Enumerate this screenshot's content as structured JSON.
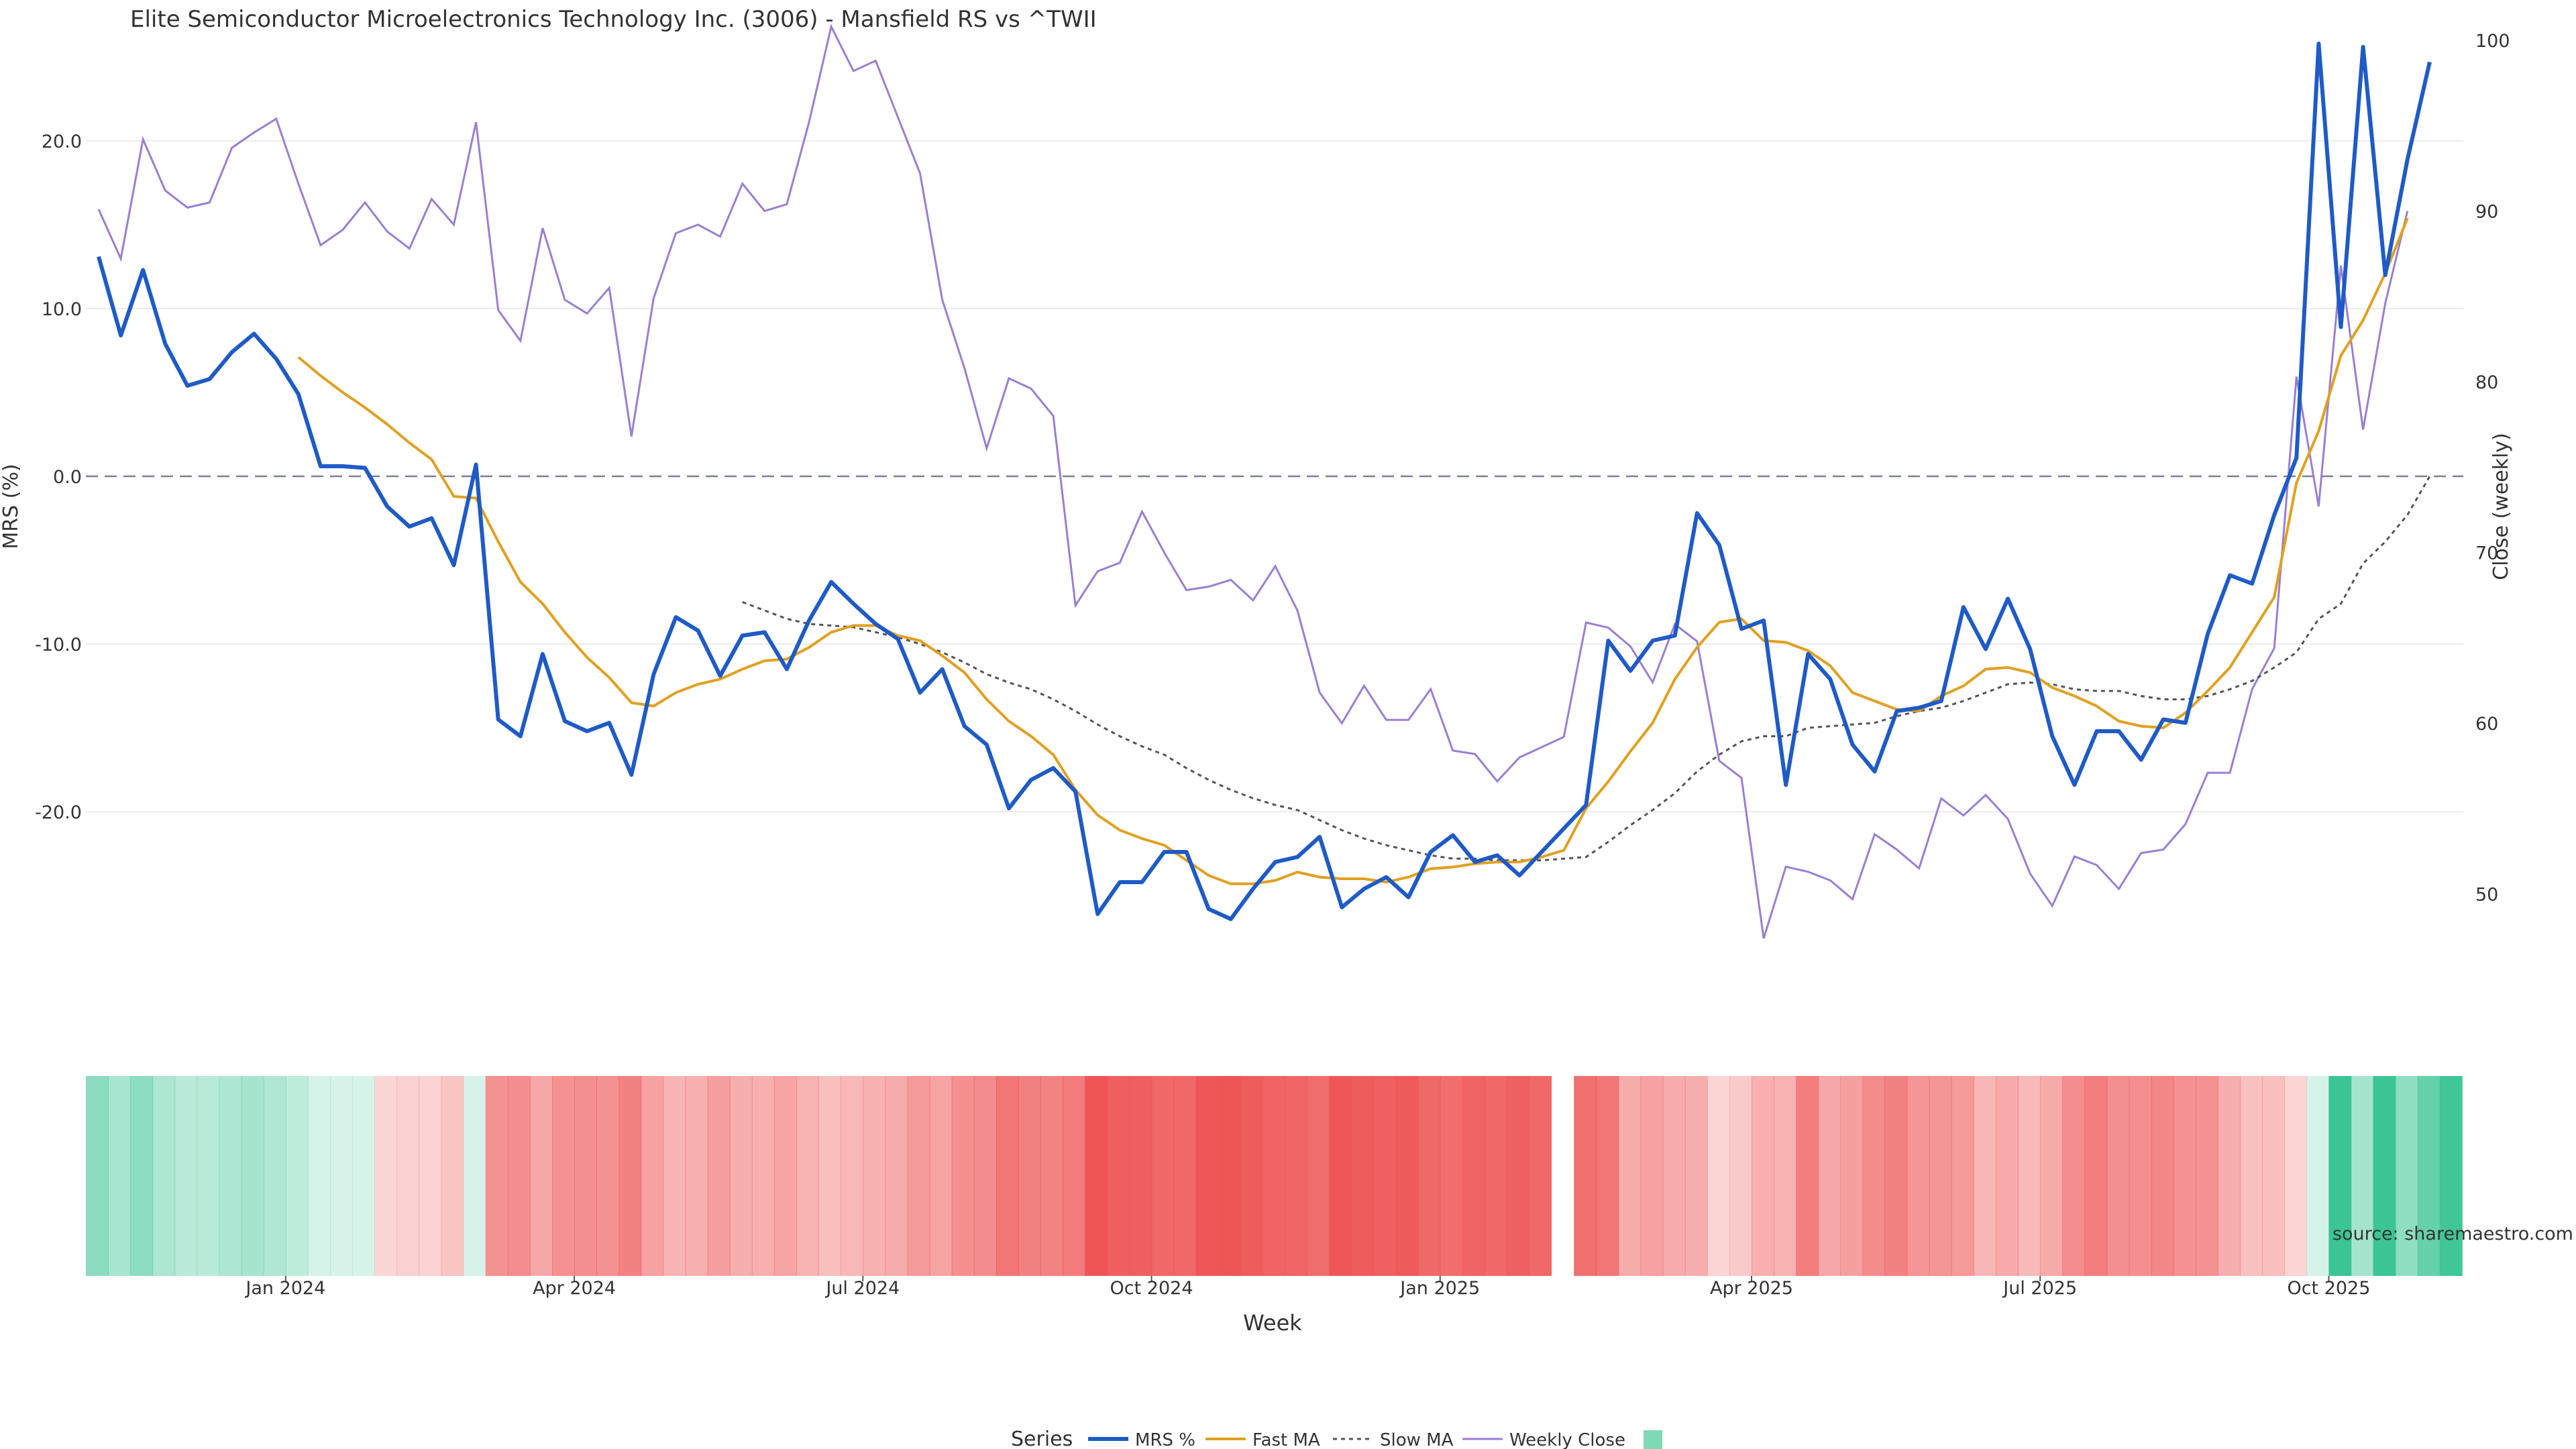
{
  "chart_data": {
    "type": "line",
    "title": "Elite Semiconductor Microelectronics Technology Inc. (3006) - Mansfield RS vs ^TWII",
    "xlabel": "Week",
    "ylabel": "MRS (%)",
    "y2label": "Close (weekly)",
    "ylim": [
      -30,
      26
    ],
    "y2lim": [
      45,
      100
    ],
    "yticks": [
      "20.0",
      "10.0",
      "0.0",
      "-10.0",
      "-20.0"
    ],
    "y2ticks": [
      "100",
      "90",
      "80",
      "70",
      "60",
      "50"
    ],
    "xticks": [
      "Jan 2024",
      "Apr 2024",
      "Jul 2024",
      "Oct 2024",
      "Jan 2025",
      "Apr 2025",
      "Jul 2025",
      "Oct 2025"
    ],
    "xtick_weeks": [
      9,
      22,
      35,
      48,
      61,
      74,
      87,
      100
    ],
    "week_count": 107,
    "reference_line": 0,
    "source": "source: sharemaestro.com",
    "legend": {
      "title": "Series",
      "placement": "bottom",
      "items": [
        "MRS %",
        "Fast MA",
        "Slow MA",
        "Weekly Close"
      ]
    },
    "colors": {
      "mrs": "#1f5bc6",
      "fast": "#e0a020",
      "slow": "#555555",
      "close": "#9a7fd1",
      "positive": "#39c493",
      "negative": "#ee5555"
    },
    "series": [
      {
        "name": "MRS %",
        "values": [
          13.1,
          8.4,
          12.3,
          7.9,
          5.4,
          5.8,
          7.4,
          8.5,
          7.0,
          4.9,
          0.6,
          0.6,
          0.5,
          -1.8,
          -3.0,
          -2.5,
          -5.3,
          0.7,
          -14.5,
          -15.5,
          -10.6,
          -14.6,
          -15.2,
          -14.7,
          -17.8,
          -11.8,
          -8.4,
          -9.2,
          -11.9,
          -9.5,
          -9.3,
          -11.5,
          -8.6,
          -6.3,
          -7.6,
          -8.8,
          -9.7,
          -12.9,
          -11.5,
          -14.9,
          -16.0,
          -19.8,
          -18.1,
          -17.4,
          -18.8,
          -26.1,
          -24.2,
          -24.2,
          -22.4,
          -22.4,
          -25.8,
          -26.4,
          -24.6,
          -23.0,
          -22.7,
          -21.5,
          -25.7,
          -24.6,
          -23.9,
          -25.1,
          -22.4,
          -21.4,
          -23.0,
          -22.6,
          -23.8,
          -22.4,
          -21.0,
          -19.6,
          -9.8,
          -11.6,
          -9.8,
          -9.5,
          -2.2,
          -4.1,
          -9.1,
          -8.6,
          -18.4,
          -10.6,
          -12.1,
          -16.0,
          -17.6,
          -14.0,
          -13.8,
          -13.4,
          -7.8,
          -10.3,
          -7.3,
          -10.3,
          -15.5,
          -18.4,
          -15.2,
          -15.2,
          -16.9,
          -14.5,
          -14.7,
          -9.4,
          -5.9,
          -6.4,
          -2.3,
          1.1,
          25.8,
          8.9,
          25.6,
          12.0,
          18.9,
          24.7
        ]
      },
      {
        "name": "Fast MA",
        "values": [
          null,
          null,
          null,
          null,
          null,
          null,
          null,
          null,
          null,
          7.1,
          6.0,
          5.0,
          4.1,
          3.1,
          2.0,
          1.0,
          -1.2,
          -1.3,
          -3.9,
          -6.3,
          -7.6,
          -9.3,
          -10.8,
          -12.0,
          -13.5,
          -13.7,
          -12.9,
          -12.4,
          -12.1,
          -11.5,
          -11.0,
          -10.9,
          -10.2,
          -9.3,
          -8.9,
          -8.9,
          -9.5,
          -9.8,
          -10.7,
          -11.7,
          -13.3,
          -14.6,
          -15.5,
          -16.6,
          -18.7,
          -20.2,
          -21.1,
          -21.6,
          -22.0,
          -22.9,
          -23.8,
          -24.3,
          -24.3,
          -24.1,
          -23.6,
          -23.9,
          -24.0,
          -24.0,
          -24.2,
          -23.9,
          -23.4,
          -23.3,
          -23.1,
          -23.0,
          -23.0,
          -22.7,
          -22.3,
          -19.8,
          -18.2,
          -16.4,
          -14.7,
          -12.1,
          -10.2,
          -8.7,
          -8.5,
          -9.8,
          -9.9,
          -10.4,
          -11.3,
          -12.9,
          -13.4,
          -13.9,
          -14.0,
          -13.1,
          -12.5,
          -11.5,
          -11.4,
          -11.7,
          -12.6,
          -13.1,
          -13.7,
          -14.6,
          -14.9,
          -15.0,
          -14.1,
          -12.8,
          -11.4,
          -9.3,
          -7.2,
          -0.4,
          2.7,
          7.2,
          9.3,
          12.1,
          15.4
        ]
      },
      {
        "name": "Slow MA",
        "values": [
          null,
          null,
          null,
          null,
          null,
          null,
          null,
          null,
          null,
          null,
          null,
          null,
          null,
          null,
          null,
          null,
          null,
          null,
          null,
          null,
          null,
          null,
          null,
          null,
          null,
          null,
          null,
          null,
          null,
          -7.5,
          -8.0,
          -8.5,
          -8.8,
          -8.9,
          -9.0,
          -9.3,
          -9.6,
          -10.0,
          -10.5,
          -11.1,
          -11.8,
          -12.3,
          -12.7,
          -13.3,
          -14.0,
          -14.8,
          -15.5,
          -16.1,
          -16.6,
          -17.4,
          -18.1,
          -18.7,
          -19.2,
          -19.6,
          -19.9,
          -20.5,
          -21.1,
          -21.6,
          -22.0,
          -22.3,
          -22.6,
          -22.8,
          -22.8,
          -22.9,
          -22.9,
          -22.9,
          -22.8,
          -22.7,
          -21.8,
          -20.8,
          -19.9,
          -18.9,
          -17.6,
          -16.6,
          -15.8,
          -15.5,
          -15.5,
          -15.0,
          -14.9,
          -14.8,
          -14.7,
          -14.3,
          -14.0,
          -13.8,
          -13.4,
          -12.9,
          -12.4,
          -12.3,
          -12.4,
          -12.7,
          -12.8,
          -12.8,
          -13.1,
          -13.3,
          -13.3,
          -13.1,
          -12.7,
          -12.2,
          -11.4,
          -10.5,
          -8.5,
          -7.6,
          -5.2,
          -3.9,
          -2.3,
          0.0
        ]
      },
      {
        "name": "Weekly Close",
        "values": [
          90.1,
          87.2,
          94.2,
          91.2,
          90.2,
          90.5,
          93.7,
          94.6,
          95.4,
          91.6,
          88.0,
          88.9,
          90.5,
          88.8,
          87.8,
          90.7,
          89.2,
          95.2,
          84.2,
          82.4,
          89.0,
          84.8,
          84.0,
          85.5,
          76.8,
          84.9,
          88.7,
          89.2,
          88.5,
          91.6,
          90.0,
          90.4,
          95.2,
          100.8,
          98.2,
          98.8,
          95.5,
          92.2,
          84.8,
          80.8,
          76.1,
          80.2,
          79.6,
          78.0,
          66.9,
          68.9,
          69.4,
          72.4,
          70.0,
          67.8,
          68.0,
          68.4,
          67.2,
          69.2,
          66.6,
          61.8,
          60.0,
          62.2,
          60.2,
          60.2,
          62.0,
          58.4,
          58.2,
          56.6,
          58.0,
          58.6,
          59.2,
          65.9,
          65.6,
          64.5,
          62.4,
          65.8,
          64.8,
          57.8,
          56.8,
          47.4,
          51.6,
          51.3,
          50.8,
          49.7,
          53.5,
          52.6,
          51.5,
          55.6,
          54.6,
          55.8,
          54.4,
          51.2,
          49.3,
          52.2,
          51.7,
          50.3,
          52.4,
          52.6,
          54.1,
          57.1,
          57.1,
          62.0,
          64.4,
          80.3,
          72.7,
          86.8,
          77.2,
          84.6,
          90.0
        ]
      }
    ],
    "heatmap": {
      "description_values": "weekly MRS shading strip, same weeks as MRS %",
      "gap_after_week": 65
    }
  }
}
